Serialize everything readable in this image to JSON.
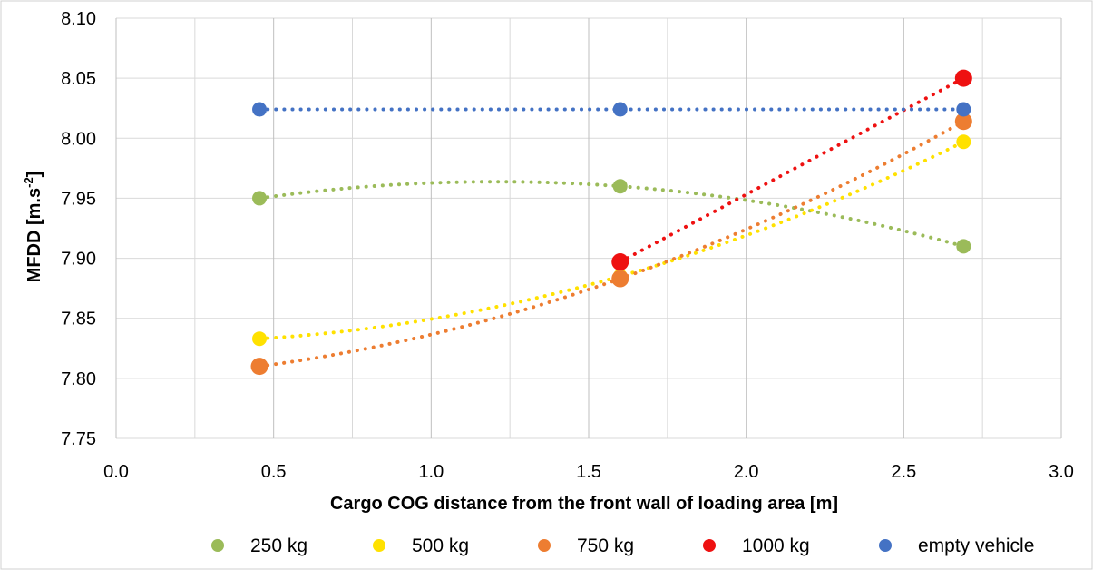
{
  "chart_data": {
    "type": "scatter",
    "title": "",
    "xlabel": "Cargo COG distance from the front wall of loading area [m]",
    "ylabel_main": "MFDD [m.s",
    "ylabel_sup": "-2",
    "ylabel_end": "]",
    "xlim": [
      0.0,
      3.0
    ],
    "ylim": [
      7.75,
      8.1
    ],
    "x_ticks": [
      0.0,
      0.5,
      1.0,
      1.5,
      2.0,
      2.5,
      3.0
    ],
    "x_tick_labels": [
      "0.0",
      "0.5",
      "1.0",
      "1.5",
      "2.0",
      "2.5",
      "3.0"
    ],
    "x_minor_grid": [
      0.25,
      0.75,
      1.25,
      1.75,
      2.25,
      2.75
    ],
    "y_ticks": [
      7.75,
      7.8,
      7.85,
      7.9,
      7.95,
      8.0,
      8.05,
      8.1
    ],
    "y_tick_labels": [
      "7.75",
      "7.80",
      "7.85",
      "7.90",
      "7.95",
      "8.00",
      "8.05",
      "8.10"
    ],
    "grid": true,
    "legend_position": "bottom",
    "trendline": "dotted polynomial (order 2)",
    "series": [
      {
        "name": "250 kg",
        "color": "#9bbb59",
        "x": [
          0.455,
          1.6,
          2.69
        ],
        "y": [
          7.95,
          7.96,
          7.91
        ]
      },
      {
        "name": "500 kg",
        "color": "#ffe100",
        "x": [
          0.455,
          1.6,
          2.69
        ],
        "y": [
          7.833,
          7.885,
          7.997
        ]
      },
      {
        "name": "750 kg",
        "color": "#ed7d31",
        "x": [
          0.455,
          1.6,
          2.69
        ],
        "y": [
          7.81,
          7.883,
          8.014
        ]
      },
      {
        "name": "1000 kg",
        "color": "#ee1111",
        "x": [
          1.6,
          2.69
        ],
        "y": [
          7.897,
          8.05
        ]
      },
      {
        "name": "empty vehicle",
        "color": "#4472c4",
        "x": [
          0.455,
          1.6,
          2.69
        ],
        "y": [
          8.024,
          8.024,
          8.024
        ]
      }
    ]
  }
}
